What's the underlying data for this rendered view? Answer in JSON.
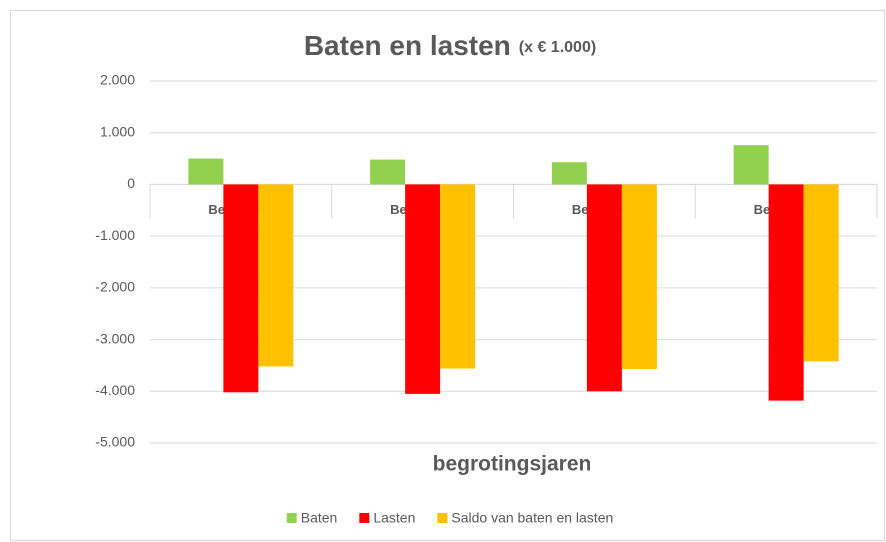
{
  "chart_data": {
    "type": "bar",
    "title": "Baten en lasten",
    "subtitle": "(x € 1.000)",
    "x_label": "begrotingsjaren",
    "categories": [
      "Begr. 2021",
      "Begr. 2022",
      "Begr. 2023",
      "Begr. 2024"
    ],
    "series": [
      {
        "name": "Baten",
        "color": "#92d050",
        "values": [
          500,
          480,
          430,
          760
        ]
      },
      {
        "name": "Lasten",
        "color": "#ff0000",
        "values": [
          -4020,
          -4050,
          -4000,
          -4180
        ]
      },
      {
        "name": "Saldo van baten en lasten",
        "color": "#ffc000",
        "values": [
          -3520,
          -3560,
          -3570,
          -3420
        ]
      }
    ],
    "ylim": [
      -5000,
      2000
    ],
    "yticks": [
      {
        "value": -5000,
        "label": "-5.000"
      },
      {
        "value": -4000,
        "label": "-4.000"
      },
      {
        "value": -3000,
        "label": "-3.000"
      },
      {
        "value": -2000,
        "label": "-2.000"
      },
      {
        "value": -1000,
        "label": "-1.000"
      },
      0,
      {
        "value": 1000,
        "label": "1.000"
      },
      {
        "value": 2000,
        "label": "2.000"
      }
    ],
    "grid": true,
    "legend": "bottom"
  }
}
